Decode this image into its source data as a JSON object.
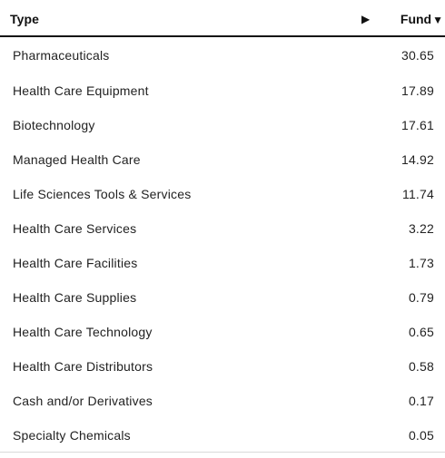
{
  "table": {
    "header": {
      "type_label": "Type",
      "fund_label": "Fund",
      "expand_icon": "triangle-right-icon",
      "sort_icon": "triangle-down-icon",
      "sort_glyph": "▼",
      "expand_glyph": "▶"
    },
    "rows": [
      {
        "type": "Pharmaceuticals",
        "fund": "30.65"
      },
      {
        "type": "Health Care Equipment",
        "fund": "17.89"
      },
      {
        "type": "Biotechnology",
        "fund": "17.61"
      },
      {
        "type": "Managed Health Care",
        "fund": "14.92"
      },
      {
        "type": "Life Sciences Tools & Services",
        "fund": "11.74"
      },
      {
        "type": "Health Care Services",
        "fund": "3.22"
      },
      {
        "type": "Health Care Facilities",
        "fund": "1.73"
      },
      {
        "type": "Health Care Supplies",
        "fund": "0.79"
      },
      {
        "type": "Health Care Technology",
        "fund": "0.65"
      },
      {
        "type": "Health Care Distributors",
        "fund": "0.58"
      },
      {
        "type": "Cash and/or Derivatives",
        "fund": "0.17"
      },
      {
        "type": "Specialty Chemicals",
        "fund": "0.05"
      }
    ]
  },
  "colors": {
    "text": "#222222",
    "header_text": "#111111",
    "header_rule": "#111111",
    "bottom_rule": "#d9d9d9"
  }
}
